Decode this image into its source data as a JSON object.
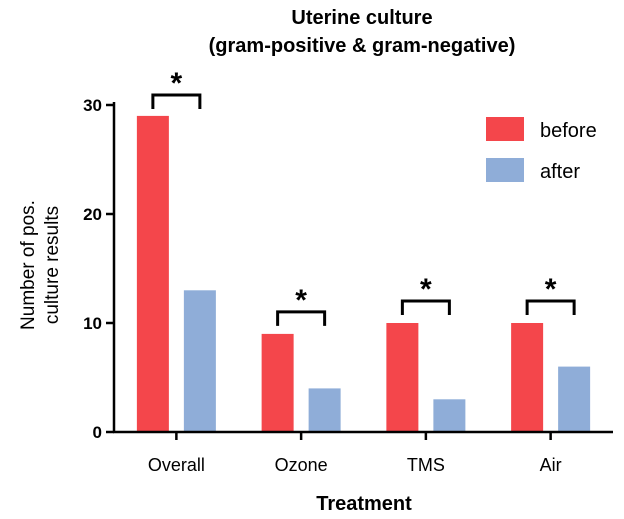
{
  "chart_data": {
    "type": "bar",
    "title_lines": [
      "Uterine culture",
      "(gram-positive & gram-negative)"
    ],
    "xlabel": "Treatment",
    "ylabel_lines": [
      "Number of pos.",
      "culture results"
    ],
    "categories": [
      "Overall",
      "Ozone",
      "TMS",
      "Air"
    ],
    "series": [
      {
        "name": "before",
        "color": "#f4464b",
        "values": [
          29,
          9,
          10,
          10
        ]
      },
      {
        "name": "after",
        "color": "#8fadd8",
        "values": [
          13,
          4,
          3,
          6
        ]
      }
    ],
    "ylim": [
      0,
      30
    ],
    "yticks": [
      0,
      10,
      20,
      30
    ],
    "significance": [
      "*",
      "*",
      "*",
      "*"
    ],
    "legend_position": "top-right",
    "grid": false
  }
}
